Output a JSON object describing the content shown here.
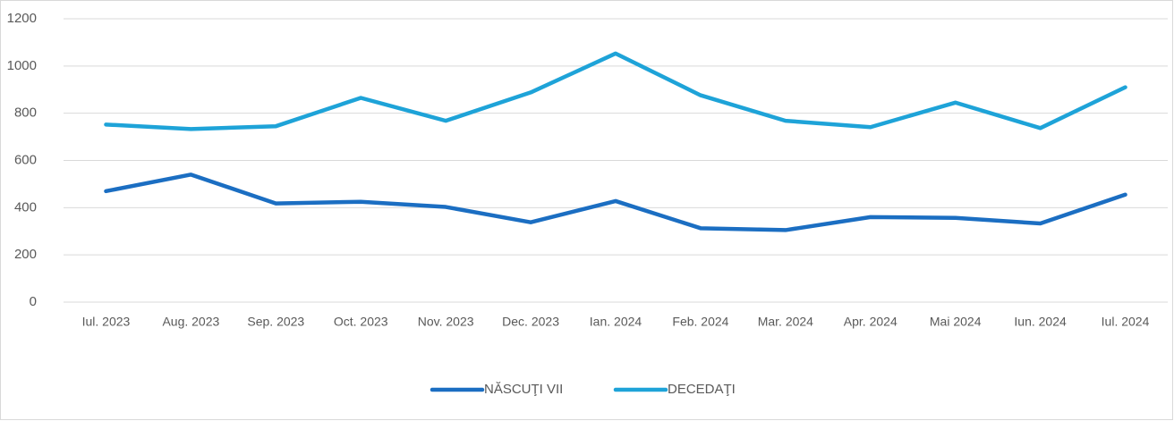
{
  "chart_data": {
    "type": "line",
    "categories": [
      "Iul. 2023",
      "Aug. 2023",
      "Sep. 2023",
      "Oct. 2023",
      "Nov. 2023",
      "Dec. 2023",
      "Ian. 2024",
      "Feb. 2024",
      "Mar. 2024",
      "Apr. 2024",
      "Mai 2024",
      "Iun. 2024",
      "Iul. 2024"
    ],
    "series": [
      {
        "name": "NĂSCUŢI VII",
        "color": "#1b6ec2",
        "values": [
          470,
          540,
          418,
          425,
          403,
          338,
          428,
          313,
          305,
          360,
          357,
          333,
          455
        ]
      },
      {
        "name": "DECEDAŢI",
        "color": "#1ea3d8",
        "values": [
          752,
          733,
          745,
          865,
          768,
          888,
          1053,
          876,
          768,
          741,
          845,
          737,
          910
        ]
      }
    ],
    "ylim": [
      0,
      1200
    ],
    "yticks": [
      0,
      200,
      400,
      600,
      800,
      1000,
      1200
    ],
    "grid": true,
    "legend": "bottom"
  }
}
